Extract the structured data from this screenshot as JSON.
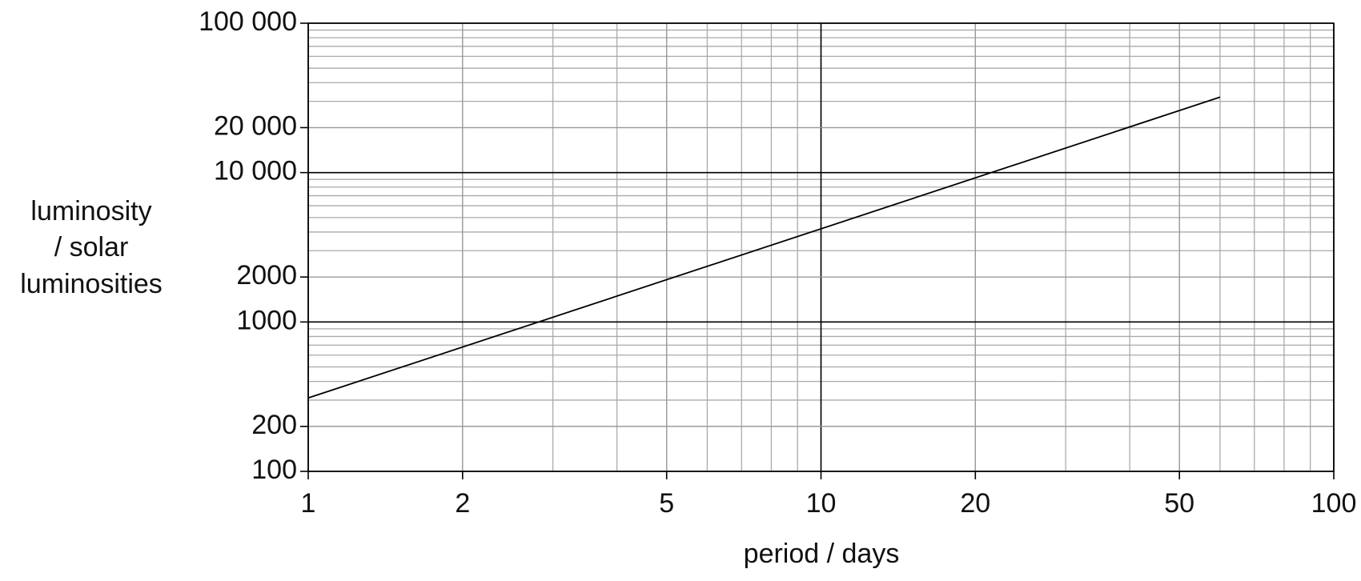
{
  "chart_data": {
    "type": "line",
    "xlabel": "period / days",
    "ylabel": [
      "luminosity",
      "/ solar",
      "luminosities"
    ],
    "x": [
      1,
      60
    ],
    "series": [
      {
        "color": "#000000",
        "values": [
          310,
          32000
        ]
      }
    ],
    "xlim": [
      1,
      100
    ],
    "ylim": [
      100,
      100000
    ],
    "xscale": "log",
    "yscale": "log",
    "xticks": [
      1,
      2,
      5,
      10,
      20,
      50,
      100
    ],
    "yticks": [
      100,
      200,
      1000,
      2000,
      {
        "value": 10000,
        "label": "10 000"
      },
      {
        "value": 20000,
        "label": "20 000"
      },
      {
        "value": 100000,
        "label": "100 000"
      }
    ],
    "grid": true,
    "minor_grid": true
  }
}
